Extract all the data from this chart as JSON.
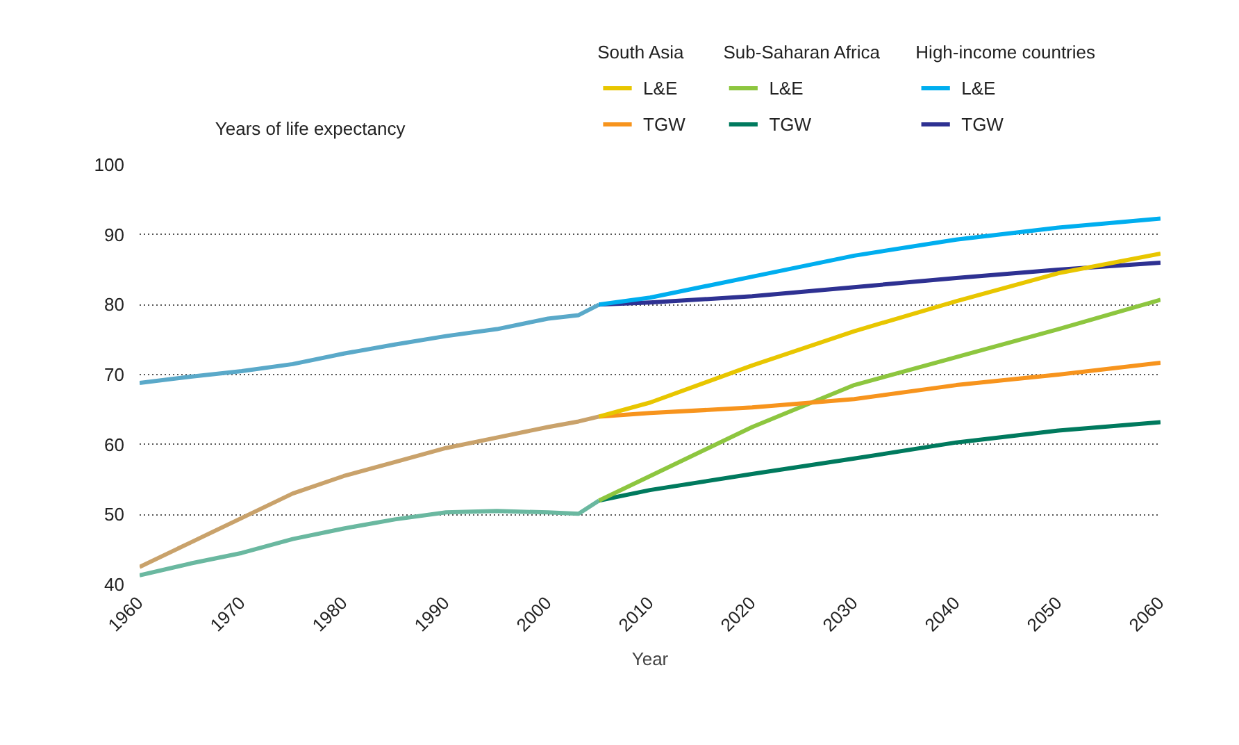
{
  "chart_data": {
    "type": "line",
    "xlabel": "Year",
    "ylabel": "Years of life expectancy",
    "xlim": [
      1960,
      2060
    ],
    "xticks": [
      1960,
      1970,
      1980,
      1990,
      2000,
      2010,
      2020,
      2030,
      2040,
      2050,
      2060
    ],
    "ylim": [
      40,
      100
    ],
    "yticks": [
      40,
      50,
      60,
      70,
      80,
      90,
      100
    ],
    "grid": "y",
    "legend": "top right",
    "line_style": "solid",
    "marker": "none",
    "annotations": [
      "South Asia",
      "Sub-Saharan Africa",
      "High-income countries"
    ],
    "series": [
      {
        "name": "L&E",
        "color": "#e8c600",
        "x": [
          2005,
          2010,
          2020,
          2030,
          2040,
          2050,
          2060
        ],
        "values": [
          64,
          66,
          71.3,
          76.2,
          80.5,
          84.5,
          87.3
        ]
      },
      {
        "name": "TGW",
        "color": "#f7941d",
        "x": [
          2005,
          2010,
          2020,
          2030,
          2040,
          2050,
          2060
        ],
        "values": [
          64,
          64.5,
          65.3,
          66.5,
          68.5,
          70,
          71.7
        ]
      },
      {
        "name": "L&E",
        "color": "#8dc63f",
        "x": [
          2005,
          2010,
          2020,
          2030,
          2040,
          2050,
          2060
        ],
        "values": [
          52,
          55.5,
          62.5,
          68.5,
          72.5,
          76.5,
          80.7
        ]
      },
      {
        "name": "TGW",
        "color": "#007a5e",
        "x": [
          2005,
          2010,
          2020,
          2030,
          2040,
          2050,
          2060
        ],
        "values": [
          52,
          53.5,
          55.8,
          58,
          60.3,
          62,
          63.2
        ]
      },
      {
        "name": "L&E",
        "color": "#00aeef",
        "x": [
          2005,
          2010,
          2020,
          2030,
          2040,
          2050,
          2060
        ],
        "values": [
          80,
          81,
          84,
          87,
          89.3,
          91,
          92.3
        ]
      },
      {
        "name": "TGW",
        "color": "#2e3192",
        "x": [
          2005,
          2010,
          2020,
          2030,
          2040,
          2050,
          2060
        ],
        "values": [
          80,
          80.3,
          81.2,
          82.5,
          83.8,
          85,
          86
        ]
      },
      {
        "color": "#5aa9c9",
        "x": [
          1960,
          1965,
          1970,
          1975,
          1980,
          1985,
          1990,
          1995,
          2000,
          2003,
          2005
        ],
        "values": [
          68.8,
          69.7,
          70.5,
          71.5,
          73,
          74.3,
          75.5,
          76.5,
          78,
          78.5,
          80
        ]
      },
      {
        "color": "#c9a26b",
        "x": [
          1960,
          1965,
          1970,
          1975,
          1980,
          1985,
          1990,
          1995,
          2000,
          2003,
          2005
        ],
        "values": [
          42.5,
          46,
          49.5,
          53,
          55.5,
          57.5,
          59.5,
          61,
          62.5,
          63.3,
          64
        ]
      },
      {
        "color": "#6ab8a0",
        "x": [
          1960,
          1965,
          1970,
          1975,
          1980,
          1985,
          1990,
          1995,
          2000,
          2003,
          2005
        ],
        "values": [
          41.3,
          43,
          44.5,
          46.5,
          48,
          49.3,
          50.3,
          50.5,
          50.3,
          50.1,
          52
        ]
      }
    ]
  }
}
